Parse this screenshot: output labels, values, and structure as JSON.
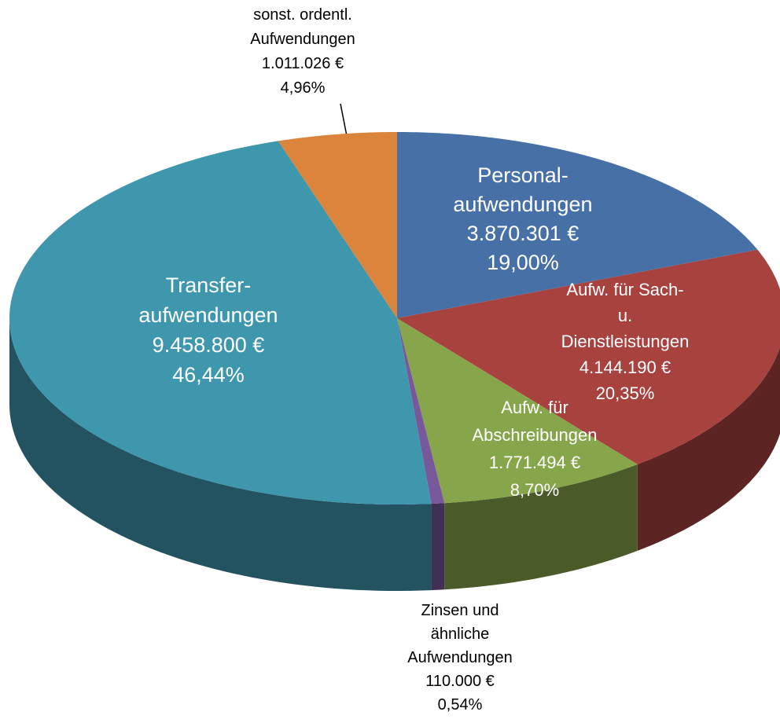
{
  "chart_data": {
    "type": "pie3d",
    "categories": [
      [
        "Personal-",
        "aufwendungen"
      ],
      [
        "Aufw. für Sach-",
        "u.",
        "Dienstleistungen"
      ],
      [
        "Aufw. für",
        "Abschreibungen"
      ],
      [
        "Zinsen und",
        "ähnliche",
        "Aufwendungen"
      ],
      [
        "Transfer-",
        "aufwendungen"
      ],
      [
        "sonst. ordentl.",
        "Aufwendungen"
      ]
    ],
    "values": [
      3870301,
      4144190,
      1771494,
      110000,
      9458800,
      1011026
    ],
    "value_labels": [
      "3.870.301 €",
      "4.144.190 €",
      "1.771.494 €",
      "110.000 €",
      "9.458.800 €",
      "1.011.026 €"
    ],
    "percentages": [
      19.0,
      20.35,
      8.7,
      0.54,
      46.44,
      4.96
    ],
    "percentage_labels": [
      "19,00%",
      "20,35%",
      "8,70%",
      "0,54%",
      "46,44%",
      "4,96%"
    ],
    "colors": [
      "#4770a6",
      "#a8423f",
      "#87a54b",
      "#77589b",
      "#3f97ae",
      "#da843c"
    ]
  }
}
